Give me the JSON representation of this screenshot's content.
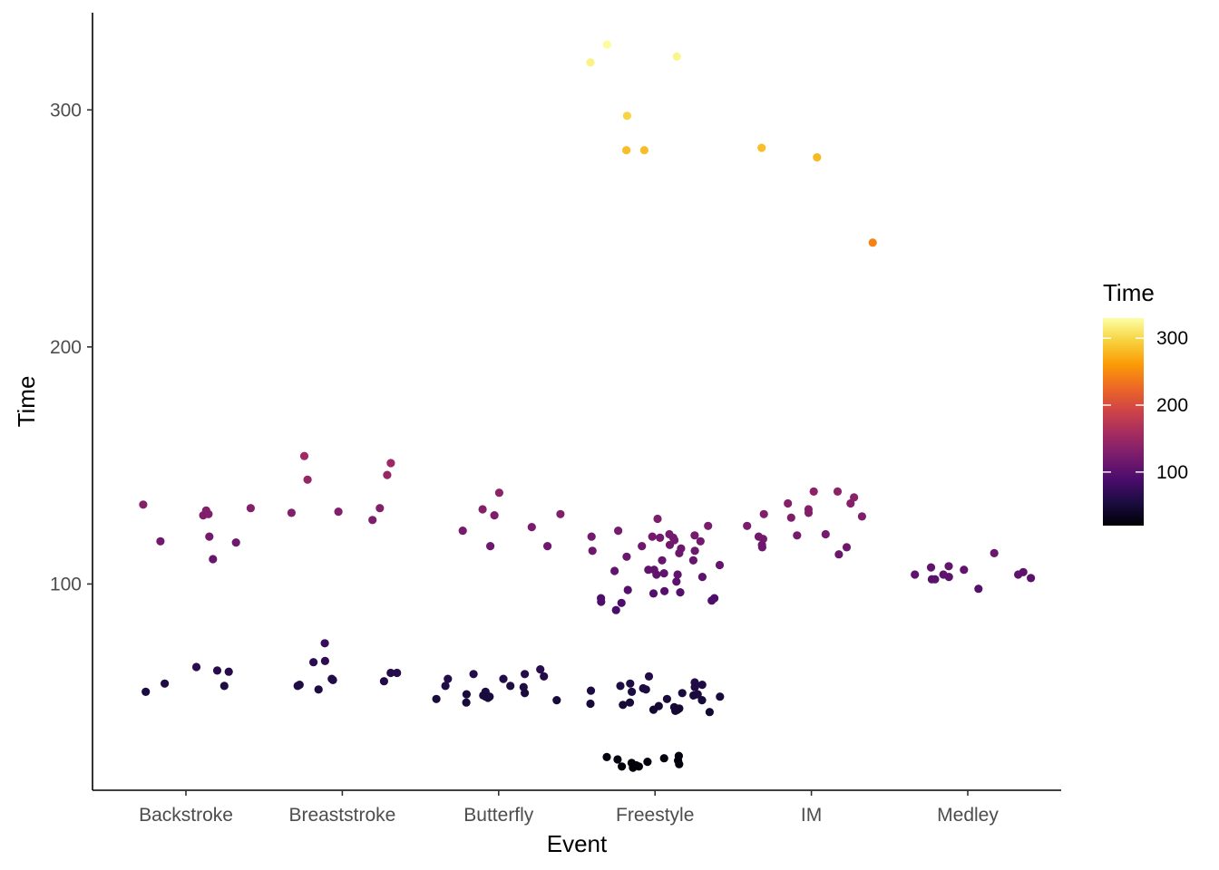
{
  "chart_data": {
    "type": "scatter",
    "xlabel": "Event",
    "ylabel": "Time",
    "categories": [
      "Backstroke",
      "Breaststroke",
      "Butterfly",
      "Freestyle",
      "IM",
      "Medley"
    ],
    "y_ticks": [
      100,
      200,
      300
    ],
    "ylim": [
      13,
      341
    ],
    "grid": false,
    "x_jitter": true,
    "colorscale": {
      "name": "inferno",
      "title": "Time",
      "range": [
        20,
        330
      ],
      "ticks": [
        100,
        200,
        300
      ],
      "stops": [
        "#000004",
        "#1b0c41",
        "#4a0c6b",
        "#781c6d",
        "#a52c60",
        "#cf4446",
        "#ed6925",
        "#fb9b06",
        "#f7d13d",
        "#fcffa4"
      ]
    },
    "legend_position": "right",
    "points": [
      {
        "event": "Backstroke",
        "time": 131.0
      },
      {
        "event": "Backstroke",
        "time": 118.0
      },
      {
        "event": "Backstroke",
        "time": 129.0
      },
      {
        "event": "Backstroke",
        "time": 132.0
      },
      {
        "event": "Backstroke",
        "time": 120.0
      },
      {
        "event": "Backstroke",
        "time": 129.5
      },
      {
        "event": "Backstroke",
        "time": 133.5
      },
      {
        "event": "Backstroke",
        "time": 117.5
      },
      {
        "event": "Backstroke",
        "time": 110.5
      },
      {
        "event": "Backstroke",
        "time": 63.0
      },
      {
        "event": "Backstroke",
        "time": 63.5
      },
      {
        "event": "Backstroke",
        "time": 58.0
      },
      {
        "event": "Backstroke",
        "time": 57.0
      },
      {
        "event": "Backstroke",
        "time": 54.5
      },
      {
        "event": "Backstroke",
        "time": 65.0
      },
      {
        "event": "Breaststroke",
        "time": 144.0
      },
      {
        "event": "Breaststroke",
        "time": 154.0
      },
      {
        "event": "Breaststroke",
        "time": 132.0
      },
      {
        "event": "Breaststroke",
        "time": 151.0
      },
      {
        "event": "Breaststroke",
        "time": 146.0
      },
      {
        "event": "Breaststroke",
        "time": 130.0
      },
      {
        "event": "Breaststroke",
        "time": 130.5
      },
      {
        "event": "Breaststroke",
        "time": 127.0
      },
      {
        "event": "Breaststroke",
        "time": 75.0
      },
      {
        "event": "Breaststroke",
        "time": 67.0
      },
      {
        "event": "Breaststroke",
        "time": 67.5
      },
      {
        "event": "Breaststroke",
        "time": 62.5
      },
      {
        "event": "Breaststroke",
        "time": 62.5
      },
      {
        "event": "Breaststroke",
        "time": 60.0
      },
      {
        "event": "Breaststroke",
        "time": 59.5
      },
      {
        "event": "Breaststroke",
        "time": 59.0
      },
      {
        "event": "Breaststroke",
        "time": 57.5
      },
      {
        "event": "Breaststroke",
        "time": 57.0
      },
      {
        "event": "Breaststroke",
        "time": 55.5
      },
      {
        "event": "Butterfly",
        "time": 131.5
      },
      {
        "event": "Butterfly",
        "time": 138.5
      },
      {
        "event": "Butterfly",
        "time": 129.5
      },
      {
        "event": "Butterfly",
        "time": 129.0
      },
      {
        "event": "Butterfly",
        "time": 124.0
      },
      {
        "event": "Butterfly",
        "time": 122.5
      },
      {
        "event": "Butterfly",
        "time": 116.0
      },
      {
        "event": "Butterfly",
        "time": 116.0
      },
      {
        "event": "Butterfly",
        "time": 64.0
      },
      {
        "event": "Butterfly",
        "time": 62.0
      },
      {
        "event": "Butterfly",
        "time": 60.0
      },
      {
        "event": "Butterfly",
        "time": 61.0
      },
      {
        "event": "Butterfly",
        "time": 62.0
      },
      {
        "event": "Butterfly",
        "time": 60.0
      },
      {
        "event": "Butterfly",
        "time": 57.0
      },
      {
        "event": "Butterfly",
        "time": 57.0
      },
      {
        "event": "Butterfly",
        "time": 56.5
      },
      {
        "event": "Butterfly",
        "time": 54.5
      },
      {
        "event": "Butterfly",
        "time": 54.0
      },
      {
        "event": "Butterfly",
        "time": 53.5
      },
      {
        "event": "Butterfly",
        "time": 53.0
      },
      {
        "event": "Butterfly",
        "time": 52.5
      },
      {
        "event": "Butterfly",
        "time": 52.0
      },
      {
        "event": "Butterfly",
        "time": 51.0
      },
      {
        "event": "Butterfly",
        "time": 52.5
      },
      {
        "event": "Butterfly",
        "time": 51.5
      },
      {
        "event": "Butterfly",
        "time": 50.0
      },
      {
        "event": "Freestyle",
        "time": 327.5
      },
      {
        "event": "Freestyle",
        "time": 322.5
      },
      {
        "event": "Freestyle",
        "time": 320.0
      },
      {
        "event": "Freestyle",
        "time": 297.5
      },
      {
        "event": "Freestyle",
        "time": 283.0
      },
      {
        "event": "Freestyle",
        "time": 283.0
      },
      {
        "event": "Freestyle",
        "time": 122.5
      },
      {
        "event": "Freestyle",
        "time": 120.5
      },
      {
        "event": "Freestyle",
        "time": 120.0
      },
      {
        "event": "Freestyle",
        "time": 119.5
      },
      {
        "event": "Freestyle",
        "time": 118.0
      },
      {
        "event": "Freestyle",
        "time": 116.5
      },
      {
        "event": "Freestyle",
        "time": 115.0
      },
      {
        "event": "Freestyle",
        "time": 114.0
      },
      {
        "event": "Freestyle",
        "time": 110.0
      },
      {
        "event": "Freestyle",
        "time": 106.0
      },
      {
        "event": "Freestyle",
        "time": 104.0
      },
      {
        "event": "Freestyle",
        "time": 101.0
      },
      {
        "event": "Freestyle",
        "time": 97.5
      },
      {
        "event": "Freestyle",
        "time": 96.0
      },
      {
        "event": "Freestyle",
        "time": 94.0
      },
      {
        "event": "Freestyle",
        "time": 89.0
      },
      {
        "event": "Freestyle",
        "time": 127.5
      },
      {
        "event": "Freestyle",
        "time": 124.5
      },
      {
        "event": "Freestyle",
        "time": 121.0
      },
      {
        "event": "Freestyle",
        "time": 120.0
      },
      {
        "event": "Freestyle",
        "time": 119.5
      },
      {
        "event": "Freestyle",
        "time": 118.5
      },
      {
        "event": "Freestyle",
        "time": 116.0
      },
      {
        "event": "Freestyle",
        "time": 114.0
      },
      {
        "event": "Freestyle",
        "time": 113.0
      },
      {
        "event": "Freestyle",
        "time": 111.5
      },
      {
        "event": "Freestyle",
        "time": 110.0
      },
      {
        "event": "Freestyle",
        "time": 108.0
      },
      {
        "event": "Freestyle",
        "time": 106.0
      },
      {
        "event": "Freestyle",
        "time": 105.5
      },
      {
        "event": "Freestyle",
        "time": 104.5
      },
      {
        "event": "Freestyle",
        "time": 104.0
      },
      {
        "event": "Freestyle",
        "time": 103.0
      },
      {
        "event": "Freestyle",
        "time": 97.0
      },
      {
        "event": "Freestyle",
        "time": 96.5
      },
      {
        "event": "Freestyle",
        "time": 94.0
      },
      {
        "event": "Freestyle",
        "time": 93.0
      },
      {
        "event": "Freestyle",
        "time": 92.5
      },
      {
        "event": "Freestyle",
        "time": 92.0
      },
      {
        "event": "Freestyle",
        "time": 61.0
      },
      {
        "event": "Freestyle",
        "time": 58.5
      },
      {
        "event": "Freestyle",
        "time": 58.0
      },
      {
        "event": "Freestyle",
        "time": 57.5
      },
      {
        "event": "Freestyle",
        "time": 57.0
      },
      {
        "event": "Freestyle",
        "time": 56.5
      },
      {
        "event": "Freestyle",
        "time": 56.0
      },
      {
        "event": "Freestyle",
        "time": 55.5
      },
      {
        "event": "Freestyle",
        "time": 55.0
      },
      {
        "event": "Freestyle",
        "time": 54.5
      },
      {
        "event": "Freestyle",
        "time": 54.0
      },
      {
        "event": "Freestyle",
        "time": 53.5
      },
      {
        "event": "Freestyle",
        "time": 53.0
      },
      {
        "event": "Freestyle",
        "time": 52.5
      },
      {
        "event": "Freestyle",
        "time": 51.5
      },
      {
        "event": "Freestyle",
        "time": 51.0
      },
      {
        "event": "Freestyle",
        "time": 50.0
      },
      {
        "event": "Freestyle",
        "time": 49.5
      },
      {
        "event": "Freestyle",
        "time": 49.0
      },
      {
        "event": "Freestyle",
        "time": 48.5
      },
      {
        "event": "Freestyle",
        "time": 48.0
      },
      {
        "event": "Freestyle",
        "time": 47.5
      },
      {
        "event": "Freestyle",
        "time": 47.0
      },
      {
        "event": "Freestyle",
        "time": 47.0
      },
      {
        "event": "Freestyle",
        "time": 46.5
      },
      {
        "event": "Freestyle",
        "time": 46.0
      },
      {
        "event": "Freestyle",
        "time": 27.5
      },
      {
        "event": "Freestyle",
        "time": 27.0
      },
      {
        "event": "Freestyle",
        "time": 26.5
      },
      {
        "event": "Freestyle",
        "time": 26.0
      },
      {
        "event": "Freestyle",
        "time": 25.5
      },
      {
        "event": "Freestyle",
        "time": 25.0
      },
      {
        "event": "Freestyle",
        "time": 24.5
      },
      {
        "event": "Freestyle",
        "time": 24.0
      },
      {
        "event": "Freestyle",
        "time": 23.5
      },
      {
        "event": "Freestyle",
        "time": 23.0
      },
      {
        "event": "Freestyle",
        "time": 23.0
      },
      {
        "event": "Freestyle",
        "time": 22.5
      },
      {
        "event": "IM",
        "time": 284.0
      },
      {
        "event": "IM",
        "time": 280.0
      },
      {
        "event": "IM",
        "time": 244.0
      },
      {
        "event": "IM",
        "time": 139.0
      },
      {
        "event": "IM",
        "time": 139.0
      },
      {
        "event": "IM",
        "time": 136.5
      },
      {
        "event": "IM",
        "time": 134.0
      },
      {
        "event": "IM",
        "time": 134.0
      },
      {
        "event": "IM",
        "time": 131.5
      },
      {
        "event": "IM",
        "time": 130.0
      },
      {
        "event": "IM",
        "time": 129.5
      },
      {
        "event": "IM",
        "time": 128.5
      },
      {
        "event": "IM",
        "time": 128.0
      },
      {
        "event": "IM",
        "time": 124.5
      },
      {
        "event": "IM",
        "time": 121.0
      },
      {
        "event": "IM",
        "time": 120.5
      },
      {
        "event": "IM",
        "time": 120.0
      },
      {
        "event": "IM",
        "time": 119.0
      },
      {
        "event": "IM",
        "time": 116.5
      },
      {
        "event": "IM",
        "time": 115.5
      },
      {
        "event": "IM",
        "time": 115.5
      },
      {
        "event": "IM",
        "time": 112.5
      },
      {
        "event": "Medley",
        "time": 113.0
      },
      {
        "event": "Medley",
        "time": 107.5
      },
      {
        "event": "Medley",
        "time": 107.0
      },
      {
        "event": "Medley",
        "time": 106.0
      },
      {
        "event": "Medley",
        "time": 105.0
      },
      {
        "event": "Medley",
        "time": 104.0
      },
      {
        "event": "Medley",
        "time": 104.0
      },
      {
        "event": "Medley",
        "time": 104.0
      },
      {
        "event": "Medley",
        "time": 103.0
      },
      {
        "event": "Medley",
        "time": 102.5
      },
      {
        "event": "Medley",
        "time": 102.0
      },
      {
        "event": "Medley",
        "time": 102.0
      },
      {
        "event": "Medley",
        "time": 98.0
      }
    ]
  }
}
